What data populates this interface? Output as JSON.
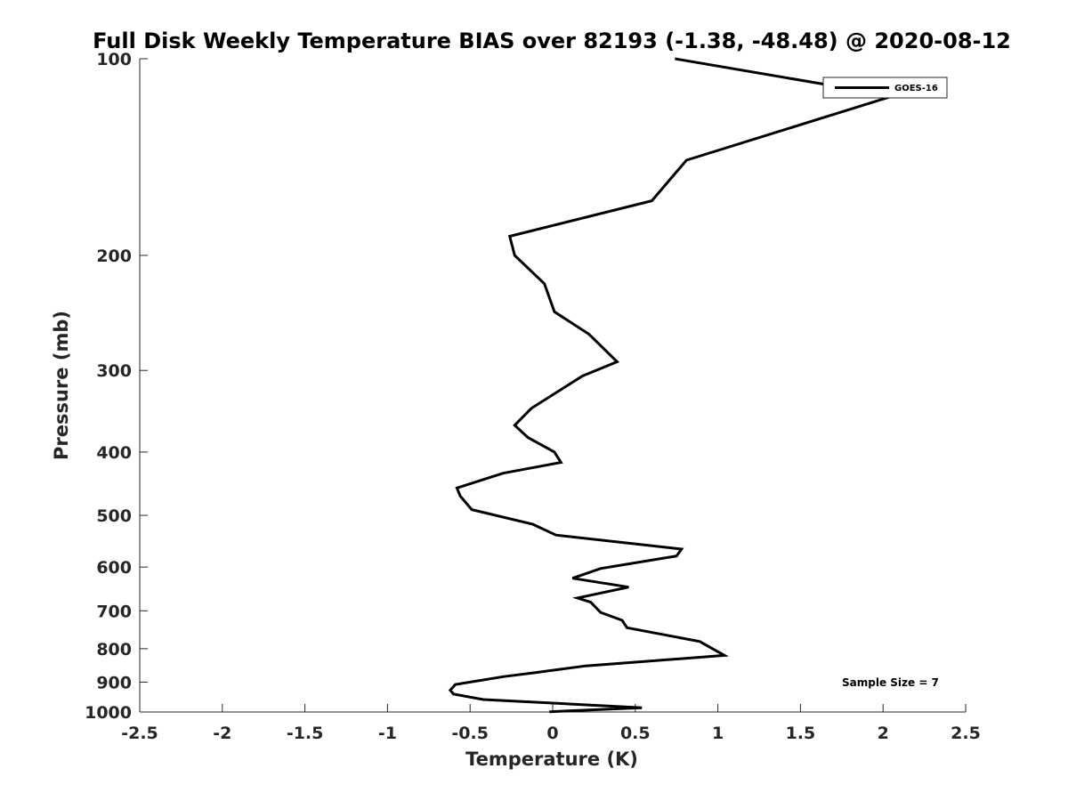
{
  "chart_data": {
    "type": "line",
    "title": "Full Disk Weekly Temperature BIAS over 82193 (-1.38, -48.48) @ 2020-08-12",
    "xlabel": "Temperature (K)",
    "ylabel": "Pressure (mb)",
    "xlim": [
      -2.5,
      2.5
    ],
    "ylim": [
      100,
      1000
    ],
    "y_scale": "log",
    "y_reversed": true,
    "x_ticks": [
      "-2.5",
      "-2",
      "-1.5",
      "-1",
      "-0.5",
      "0",
      "0.5",
      "1",
      "1.5",
      "2",
      "2.5"
    ],
    "y_ticks": [
      "100",
      "200",
      "300",
      "400",
      "500",
      "600",
      "700",
      "800",
      "900",
      "1000"
    ],
    "grid": false,
    "legend_position": "top-right",
    "annotation": "Sample Size = 7",
    "series": [
      {
        "name": "GOES-16",
        "color": "#000000",
        "x": [
          0.74,
          2.06,
          0.81,
          0.6,
          -0.26,
          -0.23,
          -0.05,
          0.01,
          0.22,
          0.39,
          0.18,
          -0.13,
          -0.23,
          -0.15,
          0.01,
          0.05,
          -0.3,
          -0.58,
          -0.56,
          -0.49,
          -0.12,
          0.02,
          0.78,
          0.75,
          0.29,
          0.12,
          0.46,
          0.15,
          0.23,
          0.29,
          0.42,
          0.45,
          0.89,
          1.04,
          0.2,
          -0.1,
          -0.3,
          -0.59,
          -0.62,
          -0.6,
          -0.42,
          0.54,
          -0.02
        ],
        "y": [
          100,
          114,
          143,
          165,
          187,
          200,
          221,
          244,
          264,
          291,
          306,
          343,
          364,
          380,
          400,
          415,
          431,
          454,
          467,
          490,
          516,
          536,
          563,
          577,
          603,
          624,
          644,
          669,
          679,
          704,
          724,
          743,
          780,
          819,
          850,
          870,
          883,
          908,
          926,
          939,
          957,
          985,
          999
        ]
      }
    ]
  }
}
